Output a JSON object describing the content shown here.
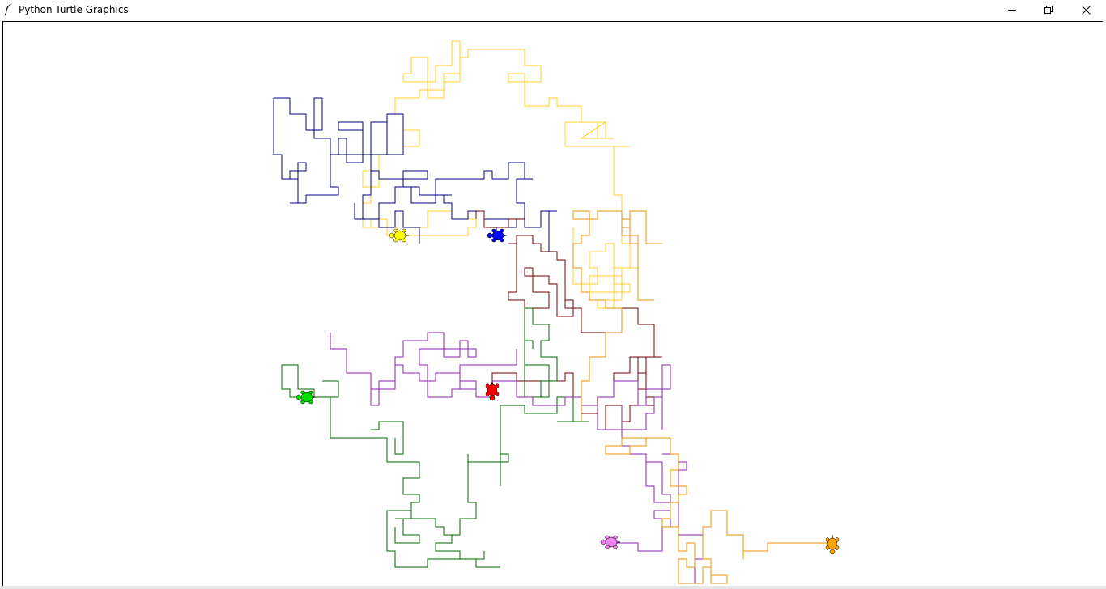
{
  "window": {
    "title": "Python Turtle Graphics",
    "icons": {
      "app": "feather-icon",
      "minimize": "minimize-icon",
      "maximize": "restore-icon",
      "close": "close-icon"
    }
  },
  "turtles": [
    {
      "name": "yellow-turtle",
      "color": "#ffff00"
    },
    {
      "name": "blue-turtle",
      "color": "#0000ff"
    },
    {
      "name": "red-turtle",
      "color": "#ff0000"
    },
    {
      "name": "green-turtle",
      "color": "#00dd00"
    },
    {
      "name": "violet-turtle",
      "color": "#ee82ee"
    },
    {
      "name": "orange-turtle",
      "color": "#ffa500"
    }
  ],
  "trail_colors": {
    "gold": "#ffd21f",
    "navy": "#000080",
    "maroon": "#700000",
    "darkgreen": "#006400",
    "purple": "#8a22b0",
    "darkorange": "#e89000"
  }
}
